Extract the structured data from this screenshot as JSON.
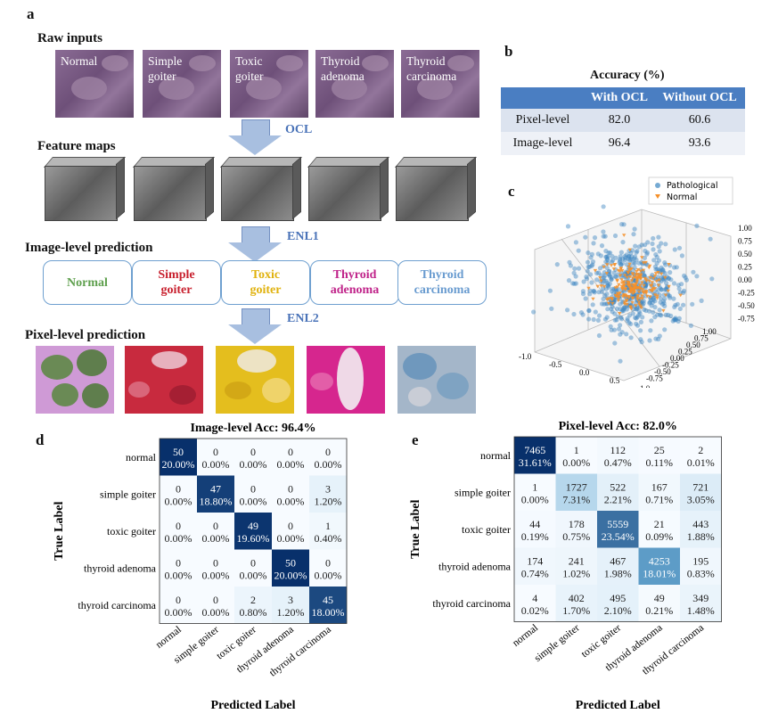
{
  "panel_letters": {
    "a": "a",
    "b": "b",
    "c": "c",
    "d": "d",
    "e": "e"
  },
  "panel_a": {
    "raw_inputs_title": "Raw inputs",
    "raw_inputs": [
      {
        "line1": "Normal",
        "line2": ""
      },
      {
        "line1": "Simple",
        "line2": "goiter"
      },
      {
        "line1": "Toxic",
        "line2": "goiter"
      },
      {
        "line1": "Thyroid",
        "line2": "adenoma"
      },
      {
        "line1": "Thyroid",
        "line2": "carcinoma"
      }
    ],
    "feature_maps_title": "Feature maps",
    "arrow_labels": [
      "OCL",
      "ENL1",
      "ENL2"
    ],
    "image_level_title": "Image-level prediction",
    "predictions": [
      {
        "line1": "Normal",
        "line2": "",
        "color": "#5fa04e"
      },
      {
        "line1": "Simple",
        "line2": "goiter",
        "color": "#c8202e"
      },
      {
        "line1": "Toxic",
        "line2": "goiter",
        "color": "#e0b20e"
      },
      {
        "line1": "Thyroid",
        "line2": "adenoma",
        "color": "#c0248a"
      },
      {
        "line1": "Thyroid",
        "line2": "carcinoma",
        "color": "#6a9cd0"
      }
    ],
    "pixel_level_title": "Pixel-level prediction"
  },
  "panel_b": {
    "title": "Accuracy (%)",
    "headers": [
      "",
      "With OCL",
      "Without OCL"
    ],
    "rows": [
      [
        "Pixel-level",
        "82.0",
        "60.6"
      ],
      [
        "Image-level",
        "96.4",
        "93.6"
      ]
    ]
  },
  "panel_c": {
    "legend": [
      {
        "label": "Pathological",
        "color": "#3b86c0"
      },
      {
        "label": "Normal",
        "color": "#f5902a"
      }
    ],
    "z_ticks": [
      "1.00",
      "0.75",
      "0.50",
      "0.25",
      "0.00",
      "-0.25",
      "-0.50",
      "-0.75"
    ],
    "x_ticks": [
      "-1.0",
      "-0.5",
      "0.0",
      "0.5",
      "1.0"
    ],
    "y_ticks": [
      "1.00",
      "0.75",
      "0.50",
      "0.25",
      "0.00",
      "-0.25",
      "-0.50",
      "-0.75"
    ]
  },
  "chart_data": [
    {
      "type": "heatmap",
      "title": "Image-level Acc: 96.4%",
      "xlabel": "Predicted Label",
      "ylabel": "True Label",
      "labels": [
        "normal",
        "simple goiter",
        "toxic goiter",
        "thyroid adenoma",
        "thyroid carcinoma"
      ],
      "counts": [
        [
          50,
          0,
          0,
          0,
          0
        ],
        [
          0,
          47,
          0,
          0,
          3
        ],
        [
          0,
          0,
          49,
          0,
          1
        ],
        [
          0,
          0,
          0,
          50,
          0
        ],
        [
          0,
          0,
          2,
          3,
          45
        ]
      ],
      "percents": [
        [
          "20.00%",
          "0.00%",
          "0.00%",
          "0.00%",
          "0.00%"
        ],
        [
          "0.00%",
          "18.80%",
          "0.00%",
          "0.00%",
          "1.20%"
        ],
        [
          "0.00%",
          "0.00%",
          "19.60%",
          "0.00%",
          "0.40%"
        ],
        [
          "0.00%",
          "0.00%",
          "0.00%",
          "20.00%",
          "0.00%"
        ],
        [
          "0.00%",
          "0.00%",
          "0.80%",
          "1.20%",
          "18.00%"
        ]
      ]
    },
    {
      "type": "heatmap",
      "title": "Pixel-level Acc: 82.0%",
      "xlabel": "Predicted Label",
      "ylabel": "True Label",
      "labels": [
        "normal",
        "simple goiter",
        "toxic goiter",
        "thyroid adenoma",
        "thyroid carcinoma"
      ],
      "counts": [
        [
          7465,
          1,
          112,
          25,
          2
        ],
        [
          1,
          1727,
          522,
          167,
          721
        ],
        [
          44,
          178,
          5559,
          21,
          443
        ],
        [
          174,
          241,
          467,
          4253,
          195
        ],
        [
          4,
          402,
          495,
          49,
          349
        ]
      ],
      "percents": [
        [
          "31.61%",
          "0.00%",
          "0.47%",
          "0.11%",
          "0.01%"
        ],
        [
          "0.00%",
          "7.31%",
          "2.21%",
          "0.71%",
          "3.05%"
        ],
        [
          "0.19%",
          "0.75%",
          "23.54%",
          "0.09%",
          "1.88%"
        ],
        [
          "0.74%",
          "1.02%",
          "1.98%",
          "18.01%",
          "0.83%"
        ],
        [
          "0.02%",
          "1.70%",
          "2.10%",
          "0.21%",
          "1.48%"
        ]
      ]
    }
  ]
}
